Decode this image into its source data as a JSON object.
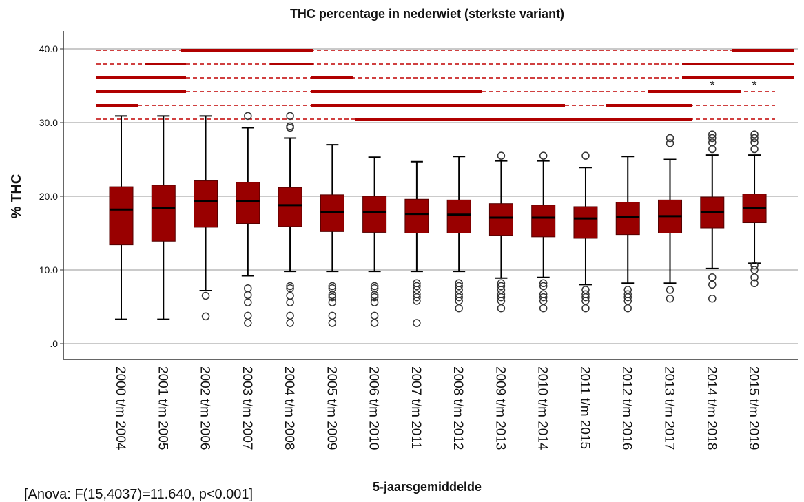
{
  "chart_data": {
    "type": "box",
    "title": "THC percentage in nederwiet (sterkste variant)",
    "ylabel": "% THC",
    "xlabel": "5-jaarsgemiddelde",
    "note": "[Anova: F(15,4037)=11.640, p<0.001]",
    "annotations": [
      "*",
      "*"
    ],
    "color": "#990000",
    "grid": true,
    "ylim": [
      -2.15,
      42.43
    ],
    "yticks": [
      {
        "value": 0,
        "label": ".0"
      },
      {
        "value": 10,
        "label": "10.0"
      },
      {
        "value": 20,
        "label": "20.0"
      },
      {
        "value": 30,
        "label": "30.0"
      },
      {
        "value": 40,
        "label": "40.0"
      }
    ],
    "categories": [
      "2000 t/m 2004",
      "2001 t/m 2005",
      "2002 t/m 2006",
      "2003 t/m 2007",
      "2004 t/m 2008",
      "2005 t/m 2009",
      "2006 t/m 2010",
      "2007 t/m 2011",
      "2008 t/m 2012",
      "2009 t/m 2013",
      "2010 t/m 2014",
      "2011 t/m 2015",
      "2012 t/m 2016",
      "2013 t/m 2017",
      "2014 t/m 2018",
      "2015 t/m 2019"
    ],
    "boxes": [
      {
        "whisker_low": 3.3,
        "q1": 13.4,
        "median": 18.2,
        "q3": 21.3,
        "whisker_high": 30.9,
        "outliers": []
      },
      {
        "whisker_low": 3.3,
        "q1": 13.9,
        "median": 18.4,
        "q3": 21.5,
        "whisker_high": 30.9,
        "outliers": []
      },
      {
        "whisker_low": 7.2,
        "q1": 15.8,
        "median": 19.3,
        "q3": 22.1,
        "whisker_high": 30.9,
        "outliers": [
          6.5,
          3.7
        ]
      },
      {
        "whisker_low": 9.2,
        "q1": 16.3,
        "median": 19.3,
        "q3": 21.9,
        "whisker_high": 29.3,
        "outliers": [
          30.9,
          7.5,
          6.6,
          5.6,
          3.8,
          2.8
        ]
      },
      {
        "whisker_low": 9.8,
        "q1": 15.9,
        "median": 18.8,
        "q3": 21.2,
        "whisker_high": 27.9,
        "outliers": [
          30.9,
          29.5,
          29.3,
          7.8,
          7.5,
          6.5,
          5.6,
          3.8,
          2.8
        ]
      },
      {
        "whisker_low": 9.8,
        "q1": 15.2,
        "median": 17.9,
        "q3": 20.2,
        "whisker_high": 27.0,
        "outliers": [
          7.8,
          7.5,
          6.6,
          6.3,
          5.6,
          3.8,
          2.8
        ]
      },
      {
        "whisker_low": 9.8,
        "q1": 15.1,
        "median": 17.9,
        "q3": 20.0,
        "whisker_high": 25.3,
        "outliers": [
          7.8,
          7.5,
          6.6,
          6.3,
          5.6,
          3.8,
          2.8
        ]
      },
      {
        "whisker_low": 9.8,
        "q1": 15.0,
        "median": 17.6,
        "q3": 19.6,
        "whisker_high": 24.7,
        "outliers": [
          8.2,
          7.8,
          7.3,
          6.7,
          6.3,
          5.8,
          2.8
        ]
      },
      {
        "whisker_low": 9.8,
        "q1": 15.0,
        "median": 17.5,
        "q3": 19.5,
        "whisker_high": 25.4,
        "outliers": [
          8.2,
          7.8,
          7.3,
          6.7,
          6.3,
          5.8,
          4.8
        ]
      },
      {
        "whisker_low": 8.9,
        "q1": 14.7,
        "median": 17.1,
        "q3": 19.0,
        "whisker_high": 24.8,
        "outliers": [
          25.5,
          8.2,
          7.8,
          7.3,
          6.7,
          6.3,
          5.8,
          4.8
        ]
      },
      {
        "whisker_low": 9.0,
        "q1": 14.5,
        "median": 17.1,
        "q3": 18.8,
        "whisker_high": 24.8,
        "outliers": [
          25.5,
          8.2,
          7.8,
          6.7,
          6.3,
          5.8,
          4.8
        ]
      },
      {
        "whisker_low": 8.0,
        "q1": 14.3,
        "median": 17.0,
        "q3": 18.6,
        "whisker_high": 23.9,
        "outliers": [
          25.5,
          7.3,
          6.7,
          6.3,
          5.8,
          4.8
        ]
      },
      {
        "whisker_low": 8.2,
        "q1": 14.8,
        "median": 17.2,
        "q3": 19.2,
        "whisker_high": 25.4,
        "outliers": [
          7.3,
          6.7,
          6.3,
          5.8,
          4.8
        ]
      },
      {
        "whisker_low": 8.2,
        "q1": 15.0,
        "median": 17.3,
        "q3": 19.5,
        "whisker_high": 25.0,
        "outliers": [
          27.9,
          27.2,
          7.3,
          6.1
        ]
      },
      {
        "whisker_low": 10.2,
        "q1": 15.7,
        "median": 17.9,
        "q3": 19.9,
        "whisker_high": 25.6,
        "outliers": [
          28.4,
          27.9,
          27.3,
          26.4,
          9.0,
          8.0,
          6.1
        ]
      },
      {
        "whisker_low": 10.9,
        "q1": 16.4,
        "median": 18.4,
        "q3": 20.3,
        "whisker_high": 25.6,
        "outliers": [
          28.4,
          27.9,
          27.3,
          26.4,
          10.6,
          10.0,
          9.0,
          8.2
        ]
      }
    ]
  }
}
